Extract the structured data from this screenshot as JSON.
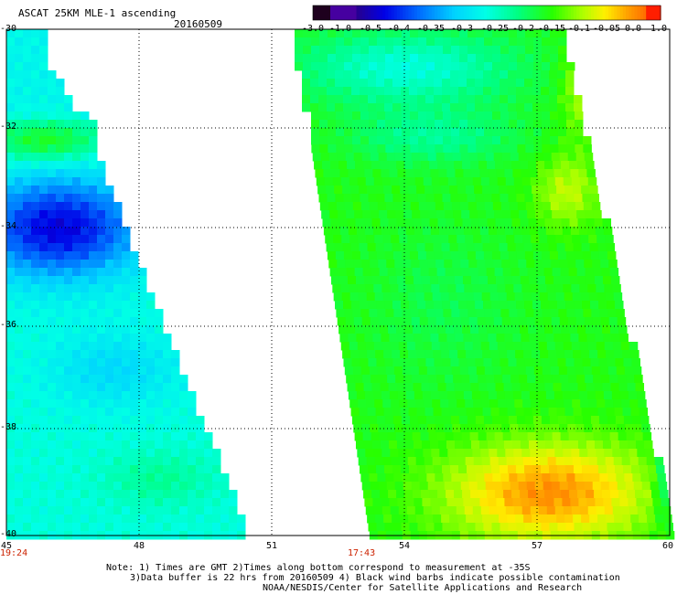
{
  "header": {
    "title": "ASCAT 25KM MLE-1 ascending",
    "date": "20160509"
  },
  "colorbar": {
    "labels": [
      "-3.0",
      "-1.0",
      "-0.5",
      "-0.4",
      "-0.35",
      "-0.3",
      "-0.25",
      "-0.2",
      "-0.15",
      "-0.1",
      "-0.05",
      "0.0",
      "1.0"
    ],
    "colors": [
      "#1a0020",
      "#4a00a0",
      "#0000ff",
      "#0060ff",
      "#00b0ff",
      "#00ffff",
      "#00ffa0",
      "#00ff00",
      "#80ff00",
      "#ffff00",
      "#ffb000",
      "#ff6000",
      "#ff0000"
    ]
  },
  "axes": {
    "lat_labels": [
      "-30",
      "-32",
      "-34",
      "-36",
      "-38",
      "-40"
    ],
    "lon_labels": [
      "45",
      "48",
      "51",
      "54",
      "57",
      "60"
    ]
  },
  "swath_times": [
    "19:24",
    "17:43"
  ],
  "notes": [
    "Note: 1) Times are GMT 2)Times along bottom correspond to measurement at -35S",
    "3)Data buffer is 22 hrs from 20160509 4) Black wind barbs indicate possible contamination",
    "NOAA/NESDIS/Center for Satellite Applications and Research"
  ]
}
